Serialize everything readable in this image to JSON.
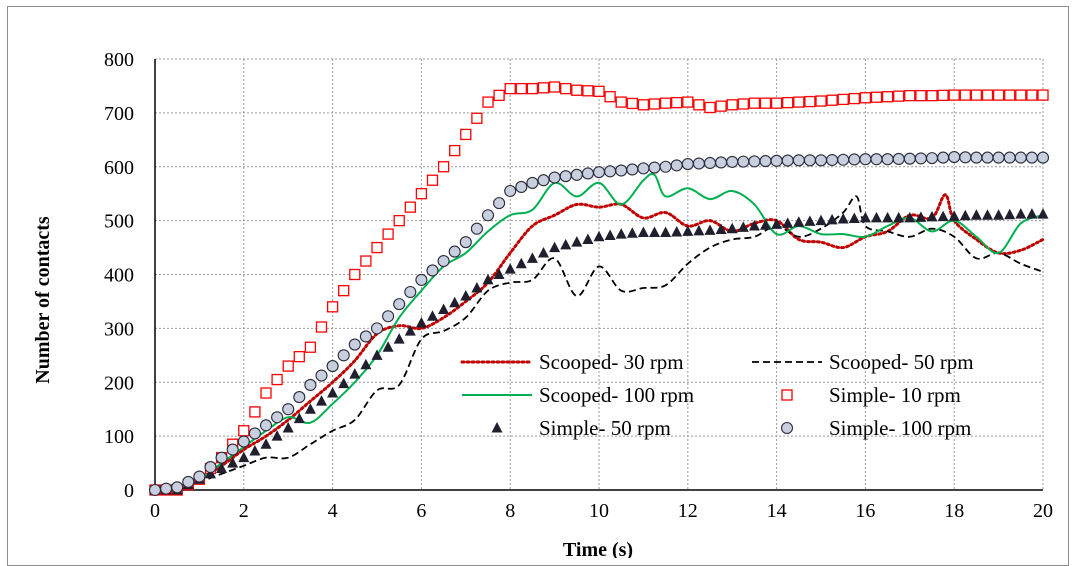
{
  "chart_data": {
    "type": "scatter",
    "xlabel": "Time (s)",
    "ylabel": "Number of contacts",
    "xlim": [
      0,
      20
    ],
    "ylim": [
      0,
      800
    ],
    "x_ticks": [
      0,
      2,
      4,
      6,
      8,
      10,
      12,
      14,
      16,
      18,
      20
    ],
    "y_ticks": [
      0,
      100,
      200,
      300,
      400,
      500,
      600,
      700,
      800
    ],
    "grid": "dotted",
    "legend_position": "bottom-right, inside plot, 2 columns",
    "series": [
      {
        "name": "Scooped- 30 rpm",
        "style": "dotted-line",
        "color": "#c00000",
        "x": [
          0,
          0.5,
          1,
          1.5,
          2,
          2.5,
          3,
          3.5,
          4,
          4.5,
          5,
          5.5,
          6,
          6.5,
          7,
          7.5,
          8,
          8.5,
          9,
          9.5,
          10,
          10.5,
          11,
          11.5,
          12,
          12.5,
          13,
          13.5,
          14,
          14.5,
          15,
          15.5,
          16,
          16.5,
          17,
          17.5,
          17.8,
          18,
          18.5,
          19,
          19.5,
          20
        ],
        "y": [
          0,
          5,
          20,
          45,
          75,
          100,
          130,
          165,
          200,
          240,
          290,
          305,
          300,
          320,
          350,
          385,
          440,
          490,
          510,
          530,
          525,
          530,
          505,
          515,
          490,
          500,
          480,
          495,
          500,
          465,
          460,
          450,
          470,
          480,
          510,
          505,
          548,
          500,
          465,
          440,
          445,
          465
        ]
      },
      {
        "name": "Scooped- 50 rpm",
        "style": "dashed-line",
        "color": "#000000",
        "x": [
          0,
          0.5,
          1,
          1.5,
          2,
          2.5,
          3,
          3.5,
          4,
          4.5,
          5,
          5.5,
          6,
          6.5,
          7,
          7.5,
          8,
          8.5,
          9,
          9.5,
          10,
          10.5,
          11,
          11.5,
          12,
          12.5,
          13,
          13.5,
          14,
          14.5,
          15,
          15.5,
          15.8,
          16,
          16.5,
          17,
          17.5,
          18,
          18.5,
          19,
          19.5,
          20
        ],
        "y": [
          0,
          3,
          15,
          30,
          45,
          60,
          60,
          85,
          110,
          130,
          185,
          195,
          280,
          295,
          320,
          370,
          385,
          390,
          430,
          360,
          415,
          370,
          375,
          380,
          420,
          450,
          465,
          470,
          490,
          470,
          485,
          515,
          545,
          490,
          480,
          470,
          485,
          470,
          430,
          440,
          420,
          405
        ]
      },
      {
        "name": "Scooped- 100 rpm",
        "style": "solid-line",
        "color": "#00b050",
        "x": [
          0,
          0.5,
          1,
          1.5,
          2,
          2.5,
          3,
          3.5,
          4,
          4.5,
          5,
          5.5,
          6,
          6.5,
          7,
          7.5,
          8,
          8.5,
          9,
          9.5,
          10,
          10.5,
          11,
          11.25,
          11.5,
          12,
          12.5,
          13,
          13.5,
          14,
          14.5,
          15,
          15.5,
          16,
          16.5,
          17,
          17.5,
          18,
          18.5,
          19,
          19.5,
          20
        ],
        "y": [
          0,
          5,
          20,
          50,
          80,
          110,
          135,
          125,
          160,
          200,
          250,
          320,
          370,
          415,
          440,
          480,
          510,
          520,
          570,
          545,
          570,
          530,
          575,
          585,
          545,
          560,
          540,
          555,
          530,
          475,
          490,
          475,
          475,
          470,
          490,
          505,
          480,
          500,
          470,
          440,
          495,
          510
        ]
      },
      {
        "name": "Simple- 10 rpm",
        "style": "open-square",
        "color": "#ff0000",
        "x": [
          0,
          0.5,
          1,
          1.5,
          2,
          2.5,
          3,
          3.5,
          4,
          4.5,
          5,
          5.5,
          6,
          6.5,
          7,
          7.5,
          8,
          8.5,
          9,
          9.5,
          10,
          10.5,
          11,
          11.5,
          12,
          12.5,
          13,
          13.5,
          14,
          14.5,
          15,
          15.5,
          16,
          16.5,
          17,
          17.5,
          18,
          18.5,
          19,
          19.5,
          20
        ],
        "y": [
          0,
          0,
          20,
          60,
          110,
          180,
          230,
          265,
          340,
          400,
          450,
          500,
          550,
          600,
          660,
          720,
          745,
          745,
          748,
          742,
          740,
          720,
          715,
          718,
          720,
          710,
          715,
          718,
          718,
          720,
          722,
          725,
          728,
          730,
          732,
          732,
          733,
          733,
          733,
          733,
          733
        ]
      },
      {
        "name": "Simple- 50 rpm",
        "style": "filled-triangle",
        "color": "#1f1f2e",
        "x": [
          0,
          0.5,
          1,
          1.5,
          2,
          2.5,
          3,
          3.5,
          4,
          4.5,
          5,
          5.5,
          6,
          6.5,
          7,
          7.5,
          8,
          8.5,
          9,
          9.5,
          10,
          10.5,
          11,
          11.5,
          12,
          12.5,
          13,
          13.5,
          14,
          14.5,
          15,
          15.5,
          16,
          16.5,
          17,
          17.5,
          18,
          18.5,
          19,
          19.5,
          20
        ],
        "y": [
          0,
          0,
          20,
          40,
          60,
          85,
          115,
          150,
          180,
          215,
          250,
          280,
          310,
          335,
          360,
          390,
          410,
          430,
          450,
          460,
          470,
          475,
          478,
          478,
          480,
          482,
          485,
          490,
          493,
          497,
          500,
          503,
          505,
          505,
          505,
          507,
          508,
          510,
          510,
          512,
          512
        ]
      },
      {
        "name": "Simple- 100 rpm",
        "style": "open-circle",
        "color": "#1f1f2e",
        "x": [
          0,
          0.5,
          1,
          1.5,
          2,
          2.5,
          3,
          3.5,
          4,
          4.5,
          5,
          5.5,
          6,
          6.5,
          7,
          7.5,
          8,
          8.5,
          9,
          9.5,
          10,
          10.5,
          11,
          11.5,
          12,
          12.5,
          13,
          13.5,
          14,
          14.5,
          15,
          15.5,
          16,
          16.5,
          17,
          17.5,
          18,
          18.5,
          19,
          19.5,
          20
        ],
        "y": [
          0,
          5,
          25,
          60,
          90,
          120,
          150,
          195,
          230,
          270,
          300,
          345,
          390,
          425,
          460,
          510,
          555,
          570,
          580,
          585,
          590,
          593,
          597,
          600,
          605,
          607,
          609,
          610,
          611,
          612,
          612,
          613,
          614,
          614,
          615,
          616,
          618,
          617,
          617,
          617,
          617
        ]
      }
    ]
  }
}
